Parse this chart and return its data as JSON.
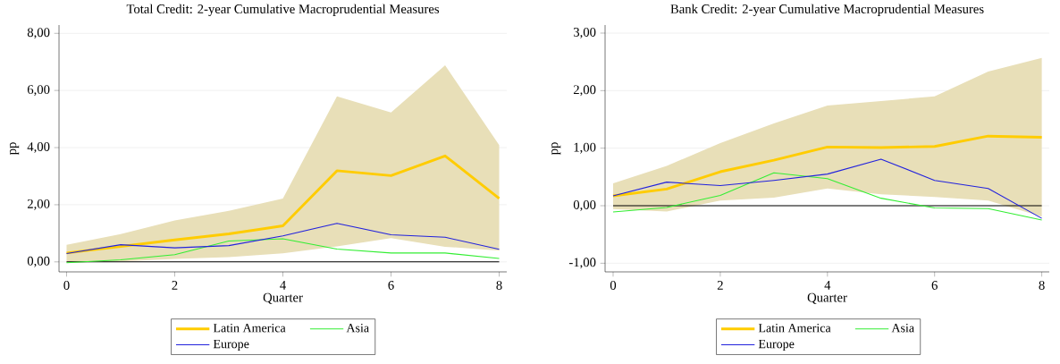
{
  "chart_data": [
    {
      "type": "line",
      "title": "Total Credit: 2-year Cumulative Macroprudential Measures",
      "xlabel": "Quarter",
      "ylabel": "pp",
      "x": [
        0,
        1,
        2,
        3,
        4,
        5,
        6,
        7,
        8
      ],
      "series": [
        {
          "name": "Latin America",
          "color": "#ffcc00",
          "values": [
            0.31,
            0.54,
            0.77,
            0.98,
            1.26,
            3.19,
            3.02,
            3.71,
            2.22
          ],
          "lower": [
            -0.03,
            0.02,
            0.1,
            0.17,
            0.3,
            0.54,
            0.83,
            0.53,
            0.39
          ],
          "upper": [
            0.6,
            0.97,
            1.45,
            1.79,
            2.22,
            5.79,
            5.23,
            6.88,
            4.09
          ]
        },
        {
          "name": "Asia",
          "color": "#33ee33",
          "values": [
            -0.03,
            0.07,
            0.25,
            0.73,
            0.81,
            0.45,
            0.31,
            0.31,
            0.12
          ]
        },
        {
          "name": "Europe",
          "color": "#2222dd",
          "values": [
            0.29,
            0.6,
            0.49,
            0.57,
            0.91,
            1.35,
            0.95,
            0.86,
            0.44
          ]
        }
      ],
      "xlim": [
        -0.14,
        8.14
      ],
      "ylim": [
        -0.35,
        8.29
      ],
      "xticks": [
        0,
        2,
        4,
        6,
        8
      ],
      "yticks": [
        {
          "value": 0,
          "label": "0,00"
        },
        {
          "value": 2,
          "label": "2,00"
        },
        {
          "value": 4,
          "label": "4,00"
        },
        {
          "value": 6,
          "label": "6,00"
        },
        {
          "value": 8,
          "label": "8,00"
        }
      ],
      "ref_lines": [
        {
          "axis": "y",
          "value": 0,
          "color": "#000000"
        }
      ],
      "grid": "y",
      "legend": "bottom",
      "marker": "none",
      "line_style": "solid"
    },
    {
      "type": "line",
      "title": "Bank Credit: 2-year Cumulative Macroprudential Measures",
      "xlabel": "Quarter",
      "ylabel": "pp",
      "x": [
        0,
        1,
        2,
        3,
        4,
        5,
        6,
        7,
        8
      ],
      "series": [
        {
          "name": "Latin America",
          "color": "#ffcc00",
          "values": [
            0.17,
            0.29,
            0.59,
            0.79,
            1.02,
            1.01,
            1.03,
            1.21,
            1.19
          ],
          "lower": [
            -0.06,
            -0.1,
            0.09,
            0.14,
            0.3,
            0.2,
            0.15,
            0.09,
            -0.19
          ],
          "upper": [
            0.39,
            0.69,
            1.09,
            1.43,
            1.74,
            1.82,
            1.9,
            2.33,
            2.57
          ]
        },
        {
          "name": "Asia",
          "color": "#33ee33",
          "values": [
            -0.11,
            -0.03,
            0.18,
            0.57,
            0.47,
            0.13,
            -0.04,
            -0.05,
            -0.25
          ]
        },
        {
          "name": "Europe",
          "color": "#2222dd",
          "values": [
            0.17,
            0.41,
            0.35,
            0.44,
            0.55,
            0.81,
            0.44,
            0.3,
            -0.22
          ]
        }
      ],
      "xlim": [
        -0.15,
        8.14
      ],
      "ylim": [
        -1.15,
        3.14
      ],
      "xticks": [
        0,
        2,
        4,
        6,
        8
      ],
      "yticks": [
        {
          "value": -1,
          "label": "-1,00"
        },
        {
          "value": 0,
          "label": "0,00"
        },
        {
          "value": 1,
          "label": "1,00"
        },
        {
          "value": 2,
          "label": "2,00"
        },
        {
          "value": 3,
          "label": "3,00"
        }
      ],
      "ref_lines": [
        {
          "axis": "y",
          "value": 0,
          "color": "#000000"
        }
      ],
      "grid": "y",
      "legend": "bottom",
      "marker": "none",
      "line_style": "solid"
    }
  ]
}
